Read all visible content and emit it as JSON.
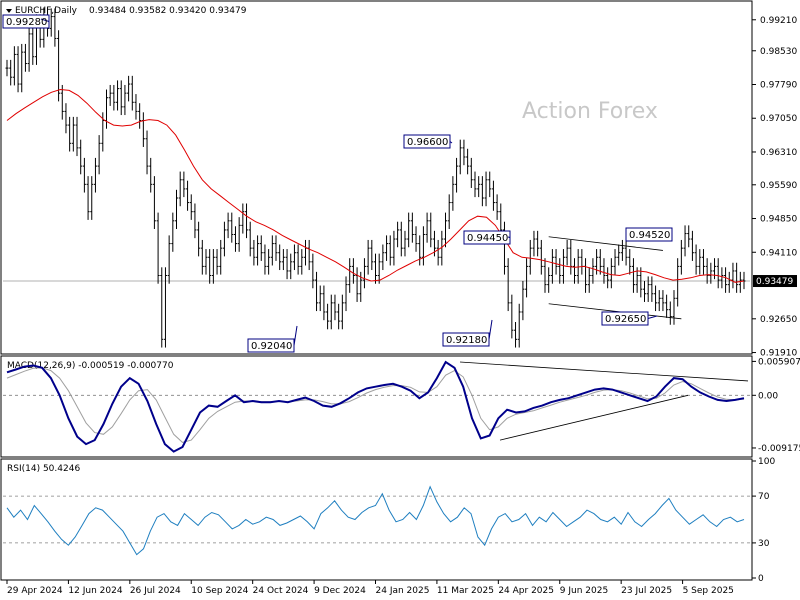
{
  "header": {
    "symbol": "EURCHF,Daily",
    "ohlc": "0.93484 0.93582 0.93420 0.93479"
  },
  "watermark": "Action Forex",
  "colors": {
    "price": "#000000",
    "ma": "#e00000",
    "macd": "#00008b",
    "signal": "#a0a0a0",
    "rsi": "#1f7fc0",
    "last_price_bg": "#000000",
    "callout_border": "#000080"
  },
  "chart_data": [
    {
      "type": "line",
      "panel": "price",
      "series": [
        {
          "name": "",
          "values": [
            0.9815,
            0.9795,
            0.9845,
            0.978,
            0.985,
            0.9825,
            0.989,
            0.984,
            0.9915,
            0.9878,
            0.993,
            0.9902,
            0.9928,
            0.988,
            0.976,
            0.972,
            0.969,
            0.965,
            0.969,
            0.964,
            0.96,
            0.956,
            0.95,
            0.956,
            0.96,
            0.965,
            0.97,
            0.975,
            0.976,
            0.974,
            0.977,
            0.973,
            0.976,
            0.978,
            0.974,
            0.972,
            0.97,
            0.966,
            0.96,
            0.956,
            0.948,
            0.936,
            0.922,
            0.936,
            0.943,
            0.948,
            0.953,
            0.957,
            0.955,
            0.952,
            0.95,
            0.946,
            0.942,
            0.938,
            0.94,
            0.936,
            0.94,
            0.938,
            0.942,
            0.946,
            0.948,
            0.945,
            0.943,
            0.947,
            0.95,
            0.946,
            0.942,
            0.94,
            0.943,
            0.941,
            0.938,
            0.94,
            0.943,
            0.941,
            0.939,
            0.94,
            0.937,
            0.939,
            0.941,
            0.938,
            0.94,
            0.942,
            0.939,
            0.935,
            0.93,
            0.932,
            0.928,
            0.926,
            0.93,
            0.928,
            0.926,
            0.93,
            0.934,
            0.938,
            0.936,
            0.932,
            0.935,
            0.938,
            0.942,
            0.939,
            0.936,
            0.939,
            0.941,
            0.943,
            0.94,
            0.944,
            0.946,
            0.942,
            0.944,
            0.948,
            0.945,
            0.943,
            0.94,
            0.945,
            0.948,
            0.944,
            0.942,
            0.94,
            0.944,
            0.948,
            0.952,
            0.956,
            0.96,
            0.964,
            0.962,
            0.96,
            0.957,
            0.955,
            0.956,
            0.953,
            0.957,
            0.955,
            0.952,
            0.95,
            0.946,
            0.938,
            0.93,
            0.924,
            0.922,
            0.928,
            0.933,
            0.938,
            0.942,
            0.944,
            0.942,
            0.938,
            0.934,
            0.936,
            0.94,
            0.938,
            0.936,
            0.94,
            0.942,
            0.938,
            0.936,
            0.94,
            0.938,
            0.934,
            0.936,
            0.938,
            0.94,
            0.938,
            0.936,
            0.935,
            0.938,
            0.94,
            0.941,
            0.942,
            0.94,
            0.938,
            0.934,
            0.936,
            0.933,
            0.932,
            0.934,
            0.932,
            0.93,
            0.931,
            0.93,
            0.9285,
            0.927,
            0.931,
            0.938,
            0.942,
            0.9452,
            0.944,
            0.941,
            0.938,
            0.94,
            0.938,
            0.936,
            0.937,
            0.938,
            0.935,
            0.936,
            0.934,
            0.935,
            0.937,
            0.934,
            0.935,
            0.9348
          ]
        },
        {
          "name": "",
          "values": [
            0.97,
            0.9715,
            0.9728,
            0.974,
            0.9752,
            0.9762,
            0.9768,
            0.9766,
            0.9755,
            0.9738,
            0.9718,
            0.97,
            0.969,
            0.9688,
            0.969,
            0.9698,
            0.9702,
            0.97,
            0.969,
            0.9668,
            0.9635,
            0.96,
            0.957,
            0.955,
            0.9535,
            0.952,
            0.9505,
            0.949,
            0.9478,
            0.947,
            0.946,
            0.9448,
            0.9438,
            0.9428,
            0.9418,
            0.941,
            0.94,
            0.939,
            0.9378,
            0.9365,
            0.9355,
            0.9348,
            0.935,
            0.936,
            0.9372,
            0.9382,
            0.9392,
            0.94,
            0.941,
            0.9422,
            0.944,
            0.946,
            0.948,
            0.949,
            0.9488,
            0.947,
            0.944,
            0.941,
            0.94,
            0.9398,
            0.9395,
            0.939,
            0.9385,
            0.938,
            0.9378,
            0.938,
            0.9375,
            0.9368,
            0.9362,
            0.936,
            0.9365,
            0.937,
            0.9368,
            0.9362,
            0.9355,
            0.935,
            0.9352,
            0.9355,
            0.936,
            0.9362,
            0.936,
            0.9355,
            0.9345,
            0.9348
          ]
        }
      ],
      "ylim": [
        0.919,
        0.996
      ],
      "yticks": [
        "0.99210",
        "0.98530",
        "0.97790",
        "0.97050",
        "0.96310",
        "0.95590",
        "0.94850",
        "0.94110",
        "0.93479",
        "0.92650",
        "0.91910"
      ],
      "callouts": [
        "0.99280",
        "0.96600",
        "0.94450",
        "0.94520",
        "0.92040",
        "0.92180",
        "0.92650"
      ],
      "last_price": "0.93479"
    },
    {
      "type": "line",
      "panel": "macd",
      "title": "MACD(12,26,9) -0.000519 -0.000770",
      "yticks": [
        "0.005907",
        "0.00",
        "-0.009175"
      ],
      "ylim": [
        -0.0104,
        0.0065
      ],
      "series": [
        {
          "name": "",
          "values": [
            0.004,
            0.0045,
            0.005,
            0.0052,
            0.0048,
            0.003,
            0.0,
            -0.004,
            -0.0072,
            -0.0085,
            -0.0078,
            -0.005,
            -0.0015,
            0.0015,
            0.003,
            0.002,
            -0.001,
            -0.005,
            -0.0085,
            -0.0098,
            -0.009,
            -0.006,
            -0.003,
            -0.0018,
            -0.002,
            -0.001,
            0.0,
            -0.0012,
            -0.001,
            -0.0012,
            -0.0012,
            -0.001,
            -0.0012,
            -0.0008,
            -0.0004,
            -0.001,
            -0.0018,
            -0.002,
            -0.0014,
            -0.0005,
            0.0005,
            0.0012,
            0.0015,
            0.0018,
            0.002,
            0.0015,
            0.0008,
            -0.0005,
            0.0005,
            0.003,
            0.0058,
            0.0048,
            0.0015,
            -0.004,
            -0.0075,
            -0.007,
            -0.004,
            -0.0025,
            -0.003,
            -0.0028,
            -0.0022,
            -0.0018,
            -0.0012,
            -0.0008,
            -0.0005,
            0.0,
            0.0005,
            0.001,
            0.0012,
            0.001,
            0.0005,
            0.0,
            -0.0005,
            -0.001,
            -0.0002,
            0.0015,
            0.003,
            0.0028,
            0.0015,
            0.0005,
            -0.0002,
            -0.0008,
            -0.001,
            -0.0008,
            -0.0005
          ]
        },
        {
          "name": "",
          "values": [
            0.003,
            0.0036,
            0.0042,
            0.0047,
            0.0048,
            0.0043,
            0.003,
            0.0008,
            -0.002,
            -0.0048,
            -0.0065,
            -0.0068,
            -0.0055,
            -0.0032,
            -0.0008,
            0.0008,
            0.001,
            -0.0008,
            -0.0038,
            -0.0068,
            -0.0082,
            -0.0078,
            -0.006,
            -0.004,
            -0.0028,
            -0.002,
            -0.0012,
            -0.001,
            -0.001,
            -0.0011,
            -0.0011,
            -0.0011,
            -0.0011,
            -0.001,
            -0.0008,
            -0.0008,
            -0.0011,
            -0.0015,
            -0.0015,
            -0.0011,
            -0.0004,
            0.0004,
            0.001,
            0.0014,
            0.0017,
            0.0017,
            0.0014,
            0.0006,
            0.0005,
            0.0015,
            0.0035,
            0.0043,
            0.0032,
            0.0,
            -0.004,
            -0.006,
            -0.0055,
            -0.004,
            -0.0033,
            -0.003,
            -0.0027,
            -0.0022,
            -0.0017,
            -0.0012,
            -0.0008,
            -0.0004,
            0.0,
            0.0005,
            0.0009,
            0.001,
            0.0008,
            0.0004,
            -0.0001,
            -0.0006,
            -0.0005,
            0.0004,
            0.0018,
            0.0024,
            0.002,
            0.0012,
            0.0004,
            -0.0003,
            -0.0007,
            -0.0008,
            -0.0007
          ]
        }
      ]
    },
    {
      "type": "line",
      "panel": "rsi",
      "title": "RSI(14) 50.4246",
      "ylim": [
        0,
        100
      ],
      "yticks": [
        "100",
        "70",
        "30",
        "0"
      ],
      "series": [
        {
          "name": "",
          "values": [
            60,
            52,
            58,
            50,
            62,
            55,
            48,
            40,
            33,
            28,
            35,
            45,
            55,
            60,
            58,
            52,
            46,
            40,
            30,
            20,
            25,
            40,
            52,
            55,
            48,
            45,
            55,
            50,
            45,
            52,
            56,
            54,
            48,
            42,
            45,
            50,
            46,
            48,
            52,
            50,
            45,
            47,
            50,
            53,
            48,
            42,
            55,
            60,
            66,
            58,
            52,
            50,
            56,
            60,
            62,
            72,
            58,
            48,
            50,
            56,
            50,
            62,
            78,
            65,
            55,
            48,
            52,
            60,
            55,
            35,
            28,
            42,
            52,
            55,
            48,
            50,
            55,
            45,
            52,
            48,
            56,
            50,
            44,
            48,
            52,
            58,
            55,
            50,
            48,
            52,
            46,
            56,
            48,
            44,
            50,
            55,
            62,
            68,
            58,
            52,
            46,
            50,
            54,
            48,
            44,
            50,
            52,
            48,
            50
          ]
        }
      ]
    }
  ],
  "xaxis": {
    "labels": [
      "29 Apr 2024",
      "12 Jun 2024",
      "26 Jul 2024",
      "10 Sep 2024",
      "24 Oct 2024",
      "9 Dec 2024",
      "24 Jan 2025",
      "11 Mar 2025",
      "24 Apr 2025",
      "9 Jun 2025",
      "23 Jul 2025",
      "5 Sep 2025"
    ]
  }
}
